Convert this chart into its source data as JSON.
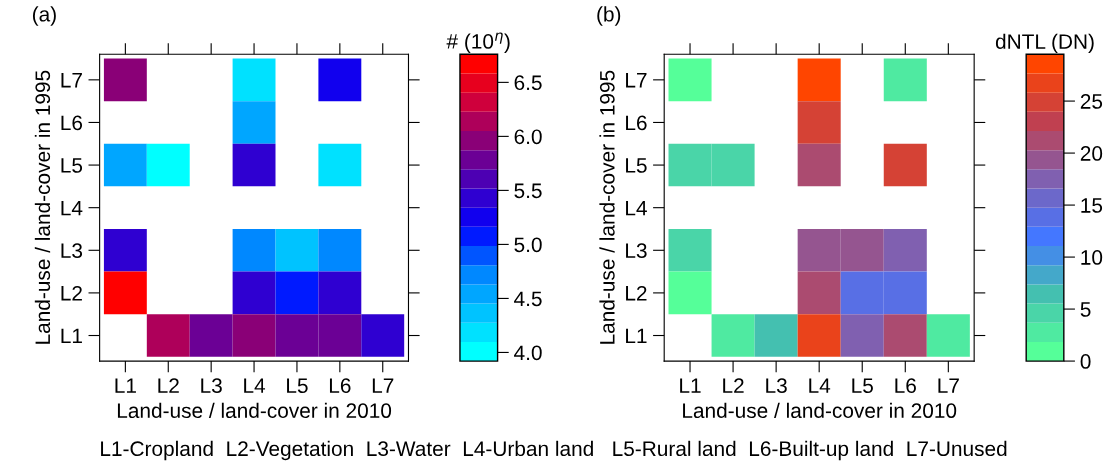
{
  "chart_data": [
    {
      "type": "heatmap",
      "title": "(a)",
      "xlabel": "Land-use / land-cover in 2010",
      "ylabel": "Land-use / land-cover in 1995",
      "clabel": "# (10$^{η}$)",
      "categories": [
        "L1",
        "L2",
        "L3",
        "L4",
        "L5",
        "L6",
        "L7"
      ],
      "y_categories": [
        "L7",
        "L6",
        "L5",
        "L4",
        "L3",
        "L2",
        "L1"
      ],
      "cells": [
        [
          6.0,
          null,
          null,
          4.2,
          null,
          5.2,
          null
        ],
        [
          null,
          null,
          null,
          4.5,
          null,
          null,
          null
        ],
        [
          4.5,
          4.0,
          null,
          5.4,
          null,
          4.2,
          null
        ],
        [
          null,
          null,
          null,
          null,
          null,
          null,
          null
        ],
        [
          5.4,
          null,
          null,
          4.8,
          4.4,
          4.8,
          null
        ],
        [
          6.7,
          null,
          null,
          5.4,
          5.0,
          5.4,
          null
        ],
        [
          null,
          6.2,
          5.8,
          6.0,
          5.8,
          5.8,
          5.4
        ]
      ],
      "clim": [
        3.92,
        6.76
      ],
      "cticks": [
        {
          "value": 4.0,
          "label": "4.0"
        },
        {
          "value": 4.5,
          "label": "4.5"
        },
        {
          "value": 5.0,
          "label": "5.0"
        },
        {
          "value": 5.5,
          "label": "5.5"
        },
        {
          "value": 6.0,
          "label": "6.0"
        },
        {
          "value": 6.5,
          "label": "6.5"
        }
      ],
      "colors": [
        "#00ffff",
        "#00bfff",
        "#0080ff",
        "#0000ff",
        "#4000c0",
        "#800080",
        "#cc0040",
        "#ff0000"
      ],
      "annotations": [
        "L1-Cropland  L2-Vegetation  L3-Water  L4-Urban land   L5-Rural land  L6-Built-up land  L7-Unused"
      ],
      "grid": false
    },
    {
      "type": "heatmap",
      "title": "(b)",
      "xlabel": "Land-use / land-cover in 2010",
      "ylabel": "Land-use / land-cover in 1995",
      "clabel": "dNTL (DN)",
      "categories": [
        "L1",
        "L2",
        "L3",
        "L4",
        "L5",
        "L6",
        "L7"
      ],
      "y_categories": [
        "L7",
        "L6",
        "L5",
        "L4",
        "L3",
        "L2",
        "L1"
      ],
      "cells": [
        [
          1,
          null,
          null,
          29,
          null,
          3,
          null
        ],
        [
          null,
          null,
          null,
          24,
          null,
          null,
          null
        ],
        [
          4,
          4,
          null,
          21,
          null,
          24,
          null
        ],
        [
          null,
          null,
          null,
          null,
          null,
          null,
          null
        ],
        [
          4,
          null,
          null,
          19,
          20,
          17,
          null
        ],
        [
          1,
          null,
          null,
          22,
          13,
          13,
          null
        ],
        [
          null,
          3,
          7,
          26,
          18,
          22,
          3
        ]
      ],
      "clim": [
        0,
        29.5
      ],
      "cticks": [
        0,
        5,
        10,
        15,
        20,
        25
      ],
      "colors": [
        "#55ff99",
        "#44c0b0",
        "#4477ff",
        "#8060b0",
        "#c04050",
        "#ff4500"
      ],
      "grid": false
    }
  ]
}
